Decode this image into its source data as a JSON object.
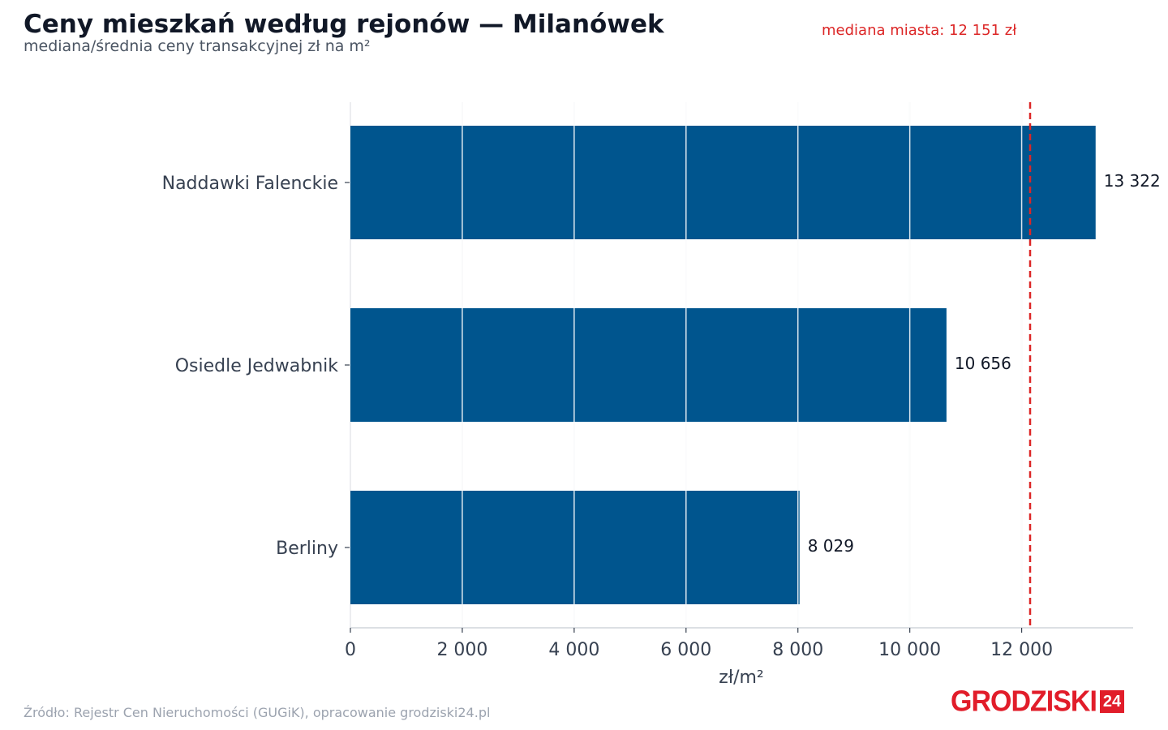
{
  "header": {
    "title": "Ceny mieszkań według rejonów — Milanówek",
    "subtitle": "mediana/średnia ceny transakcyjnej zł na m²",
    "median_note": "mediana miasta: 12 151 zł"
  },
  "footer": {
    "source": "Źródło: Rejestr Cen Nieruchomości (GUGiK), opracowanie grodziski24.pl",
    "logo_text": "GRODZISKI",
    "logo_badge": "24"
  },
  "colors": {
    "bar": "#00558e",
    "median_line": "#dc2626",
    "grid": "#e5e7eb",
    "axis_text": "#374151"
  },
  "chart_data": {
    "type": "bar",
    "orientation": "horizontal",
    "categories": [
      "Naddawki Falenckie",
      "Osiedle Jedwabnik",
      "Berliny"
    ],
    "values": [
      13322,
      10656,
      8029
    ],
    "value_labels": [
      "13 322",
      "10 656",
      "8 029"
    ],
    "xlabel": "zł/m²",
    "ylabel": "",
    "xlim": [
      0,
      14000
    ],
    "xticks": [
      0,
      2000,
      4000,
      6000,
      8000,
      10000,
      12000
    ],
    "xtick_labels": [
      "0",
      "2 000",
      "4 000",
      "6 000",
      "8 000",
      "10 000",
      "12 000"
    ],
    "reference_line": {
      "value": 12151,
      "style": "dashed"
    },
    "grid": true
  }
}
